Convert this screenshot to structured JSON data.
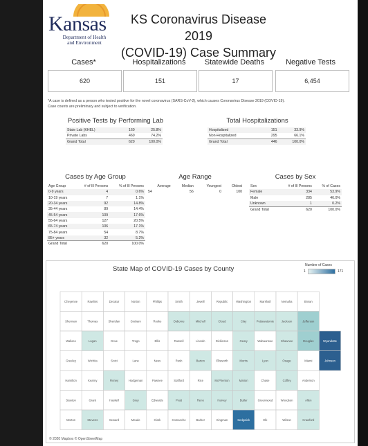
{
  "header": {
    "logo_word": "Kansas",
    "logo_dept_line1": "Department of Health",
    "logo_dept_line2": "and Environment",
    "title_line1": "KS Coronavirus Disease 2019",
    "title_line2": "(COVID-19) Case Summary"
  },
  "summary": [
    {
      "label": "Cases*",
      "value": "620"
    },
    {
      "label": "Hospitalizations",
      "value": "151"
    },
    {
      "label": "Statewide Deaths",
      "value": "17"
    },
    {
      "label": "Negative Tests",
      "value": "6,454"
    }
  ],
  "footnote_line1": "*A case is defined as a person who tested positive for the novel coronavirus (SARS-CoV-2), which causes Coronavirus Disease 2019 (COVID-19).",
  "footnote_line2": "Case counts are preliminary and subject to verification.",
  "positive_tests": {
    "title": "Positive Tests by Performing Lab",
    "rows": [
      [
        "State Lab (KHEL)",
        "160",
        "25.8%"
      ],
      [
        "Private Labs",
        "460",
        "74.2%"
      ],
      [
        "Grand Total",
        "620",
        "100.0%"
      ]
    ]
  },
  "hospitalizations": {
    "title": "Total Hospitalizations",
    "rows": [
      [
        "Hospitalized",
        "151",
        "33.9%"
      ],
      [
        "Non-Hospitalized",
        "295",
        "66.1%"
      ],
      [
        "Grand Total",
        "446",
        "100.0%"
      ]
    ]
  },
  "age_group": {
    "title": "Cases by Age Group",
    "headers": [
      "Age Group",
      "# of Ill Persons",
      "% of Ill Persons"
    ],
    "rows": [
      [
        "0-9 years",
        "4",
        "0.6%"
      ],
      [
        "10-19 years",
        "7",
        "1.1%"
      ],
      [
        "20-34 years",
        "92",
        "14.8%"
      ],
      [
        "35-44 years",
        "89",
        "14.4%"
      ],
      [
        "45-54 years",
        "109",
        "17.6%"
      ],
      [
        "55-64 years",
        "127",
        "20.5%"
      ],
      [
        "65-74 years",
        "106",
        "17.1%"
      ],
      [
        "75-84 years",
        "54",
        "8.7%"
      ],
      [
        "85+ years",
        "32",
        "5.2%"
      ],
      [
        "Grand Total",
        "620",
        "100.0%"
      ]
    ]
  },
  "age_range": {
    "title": "Age Range",
    "headers": [
      "Average",
      "Median",
      "Youngest",
      "Oldest"
    ],
    "values": [
      "54",
      "56",
      "0",
      "100"
    ]
  },
  "sex": {
    "title": "Cases by Sex",
    "headers": [
      "Sex",
      "# of Ill Persons",
      "% of Cases"
    ],
    "rows": [
      [
        "Female",
        "334",
        "53.9%"
      ],
      [
        "Male",
        "285",
        "46.0%"
      ],
      [
        "Unknown",
        "1",
        "0.2%"
      ],
      [
        "Grand Total",
        "620",
        "100.0%"
      ]
    ]
  },
  "map": {
    "title": "State Map of COVID-19 Cases by County",
    "legend_title": "Number of Cases",
    "legend_min": "1",
    "legend_max": "171",
    "credit": "© 2020 Mapbox © OpenStreetMap",
    "colors": {
      "none": "#ffffff",
      "low": "#cfe8e4",
      "mid": "#9fcfd0",
      "high": "#2d6fa0",
      "top": "#2c5f8f",
      "border": "#c9c9c9"
    },
    "counties": [
      {
        "name": "Cheyenne",
        "r": 0,
        "c": 0,
        "level": 0
      },
      {
        "name": "Rawlins",
        "r": 0,
        "c": 1,
        "level": 0
      },
      {
        "name": "Decatur",
        "r": 0,
        "c": 2,
        "level": 0
      },
      {
        "name": "Norton",
        "r": 0,
        "c": 3,
        "level": 0
      },
      {
        "name": "Phillips",
        "r": 0,
        "c": 4,
        "level": 0
      },
      {
        "name": "Smith",
        "r": 0,
        "c": 5,
        "level": 0
      },
      {
        "name": "Jewell",
        "r": 0,
        "c": 6,
        "level": 0
      },
      {
        "name": "Republic",
        "r": 0,
        "c": 7,
        "level": 0
      },
      {
        "name": "Washington",
        "r": 0,
        "c": 8,
        "level": 0
      },
      {
        "name": "Marshall",
        "r": 0,
        "c": 9,
        "level": 0
      },
      {
        "name": "Nemaha",
        "r": 0,
        "c": 10,
        "level": 0
      },
      {
        "name": "Brown",
        "r": 0,
        "c": 11,
        "level": 0
      },
      {
        "name": "Sherman",
        "r": 1,
        "c": 0,
        "level": 0
      },
      {
        "name": "Thomas",
        "r": 1,
        "c": 1,
        "level": 0
      },
      {
        "name": "Sheridan",
        "r": 1,
        "c": 2,
        "level": 0
      },
      {
        "name": "Graham",
        "r": 1,
        "c": 3,
        "level": 0
      },
      {
        "name": "Rooks",
        "r": 1,
        "c": 4,
        "level": 0
      },
      {
        "name": "Osborne",
        "r": 1,
        "c": 5,
        "level": 1
      },
      {
        "name": "Mitchell",
        "r": 1,
        "c": 6,
        "level": 1
      },
      {
        "name": "Cloud",
        "r": 1,
        "c": 7,
        "level": 1
      },
      {
        "name": "Clay",
        "r": 1,
        "c": 8,
        "level": 1
      },
      {
        "name": "Pottawatomie",
        "r": 1,
        "c": 9,
        "level": 1
      },
      {
        "name": "Jackson",
        "r": 1,
        "c": 10,
        "level": 1
      },
      {
        "name": "Jefferson",
        "r": 1,
        "c": 11,
        "level": 2
      },
      {
        "name": "Wallace",
        "r": 2,
        "c": 0,
        "level": 0
      },
      {
        "name": "Logan",
        "r": 2,
        "c": 1,
        "level": 1
      },
      {
        "name": "Gove",
        "r": 2,
        "c": 2,
        "level": 0
      },
      {
        "name": "Trego",
        "r": 2,
        "c": 3,
        "level": 0
      },
      {
        "name": "Ellis",
        "r": 2,
        "c": 4,
        "level": 0
      },
      {
        "name": "Russell",
        "r": 2,
        "c": 5,
        "level": 0
      },
      {
        "name": "Lincoln",
        "r": 2,
        "c": 6,
        "level": 0
      },
      {
        "name": "Dickinson",
        "r": 2,
        "c": 7,
        "level": 0
      },
      {
        "name": "Geary",
        "r": 2,
        "c": 8,
        "level": 1
      },
      {
        "name": "Wabaunsee",
        "r": 2,
        "c": 9,
        "level": 0
      },
      {
        "name": "Shawnee",
        "r": 2,
        "c": 10,
        "level": 1
      },
      {
        "name": "Douglas",
        "r": 2,
        "c": 11,
        "level": 2
      },
      {
        "name": "Greeley",
        "r": 3,
        "c": 0,
        "level": 0
      },
      {
        "name": "Wichita",
        "r": 3,
        "c": 1,
        "level": 0
      },
      {
        "name": "Scott",
        "r": 3,
        "c": 2,
        "level": 0
      },
      {
        "name": "Lane",
        "r": 3,
        "c": 3,
        "level": 0
      },
      {
        "name": "Ness",
        "r": 3,
        "c": 4,
        "level": 0
      },
      {
        "name": "Rush",
        "r": 3,
        "c": 5,
        "level": 0
      },
      {
        "name": "Barton",
        "r": 3,
        "c": 6,
        "level": 1
      },
      {
        "name": "Ellsworth",
        "r": 3,
        "c": 7,
        "level": 0
      },
      {
        "name": "Morris",
        "r": 3,
        "c": 8,
        "level": 1
      },
      {
        "name": "Lyon",
        "r": 3,
        "c": 9,
        "level": 1
      },
      {
        "name": "Osage",
        "r": 3,
        "c": 10,
        "level": 1
      },
      {
        "name": "Miami",
        "r": 3,
        "c": 11,
        "level": 0
      },
      {
        "name": "Hamilton",
        "r": 4,
        "c": 0,
        "level": 0
      },
      {
        "name": "Kearny",
        "r": 4,
        "c": 1,
        "level": 0
      },
      {
        "name": "Finney",
        "r": 4,
        "c": 2,
        "level": 1
      },
      {
        "name": "Hodgeman",
        "r": 4,
        "c": 3,
        "level": 0
      },
      {
        "name": "Pawnee",
        "r": 4,
        "c": 4,
        "level": 0
      },
      {
        "name": "Stafford",
        "r": 4,
        "c": 5,
        "level": 0
      },
      {
        "name": "Rice",
        "r": 4,
        "c": 6,
        "level": 0
      },
      {
        "name": "McPherson",
        "r": 4,
        "c": 7,
        "level": 1
      },
      {
        "name": "Marion",
        "r": 4,
        "c": 8,
        "level": 1
      },
      {
        "name": "Chase",
        "r": 4,
        "c": 9,
        "level": 0
      },
      {
        "name": "Coffey",
        "r": 4,
        "c": 10,
        "level": 1
      },
      {
        "name": "Anderson",
        "r": 4,
        "c": 11,
        "level": 0
      },
      {
        "name": "Stanton",
        "r": 5,
        "c": 0,
        "level": 0
      },
      {
        "name": "Grant",
        "r": 5,
        "c": 1,
        "level": 0
      },
      {
        "name": "Haskell",
        "r": 5,
        "c": 2,
        "level": 0
      },
      {
        "name": "Gray",
        "r": 5,
        "c": 3,
        "level": 1
      },
      {
        "name": "Edwards",
        "r": 5,
        "c": 4,
        "level": 0
      },
      {
        "name": "Pratt",
        "r": 5,
        "c": 5,
        "level": 1
      },
      {
        "name": "Reno",
        "r": 5,
        "c": 6,
        "level": 1
      },
      {
        "name": "Harvey",
        "r": 5,
        "c": 7,
        "level": 1
      },
      {
        "name": "Butler",
        "r": 5,
        "c": 8,
        "level": 1
      },
      {
        "name": "Greenwood",
        "r": 5,
        "c": 9,
        "level": 0
      },
      {
        "name": "Woodson",
        "r": 5,
        "c": 10,
        "level": 0
      },
      {
        "name": "Allen",
        "r": 5,
        "c": 11,
        "level": 1
      },
      {
        "name": "Morton",
        "r": 6,
        "c": 0,
        "level": 0
      },
      {
        "name": "Stevens",
        "r": 6,
        "c": 1,
        "level": 1
      },
      {
        "name": "Seward",
        "r": 6,
        "c": 2,
        "level": 0
      },
      {
        "name": "Meade",
        "r": 6,
        "c": 3,
        "level": 0
      },
      {
        "name": "Clark",
        "r": 6,
        "c": 4,
        "level": 0
      },
      {
        "name": "Comanche",
        "r": 6,
        "c": 5,
        "level": 0
      },
      {
        "name": "Barber",
        "r": 6,
        "c": 6,
        "level": 0
      },
      {
        "name": "Kingman",
        "r": 6,
        "c": 7,
        "level": 0
      },
      {
        "name": "Sedgwick",
        "r": 6,
        "c": 8,
        "level": 3
      },
      {
        "name": "Elk",
        "r": 6,
        "c": 9,
        "level": 0
      },
      {
        "name": "Wilson",
        "r": 6,
        "c": 10,
        "level": 0
      },
      {
        "name": "Crawford",
        "r": 6,
        "c": 11,
        "level": 1
      },
      {
        "name": "Wyandotte",
        "r": 2,
        "c": 12,
        "level": 4
      },
      {
        "name": "Johnson",
        "r": 3,
        "c": 12,
        "level": 4
      }
    ]
  }
}
